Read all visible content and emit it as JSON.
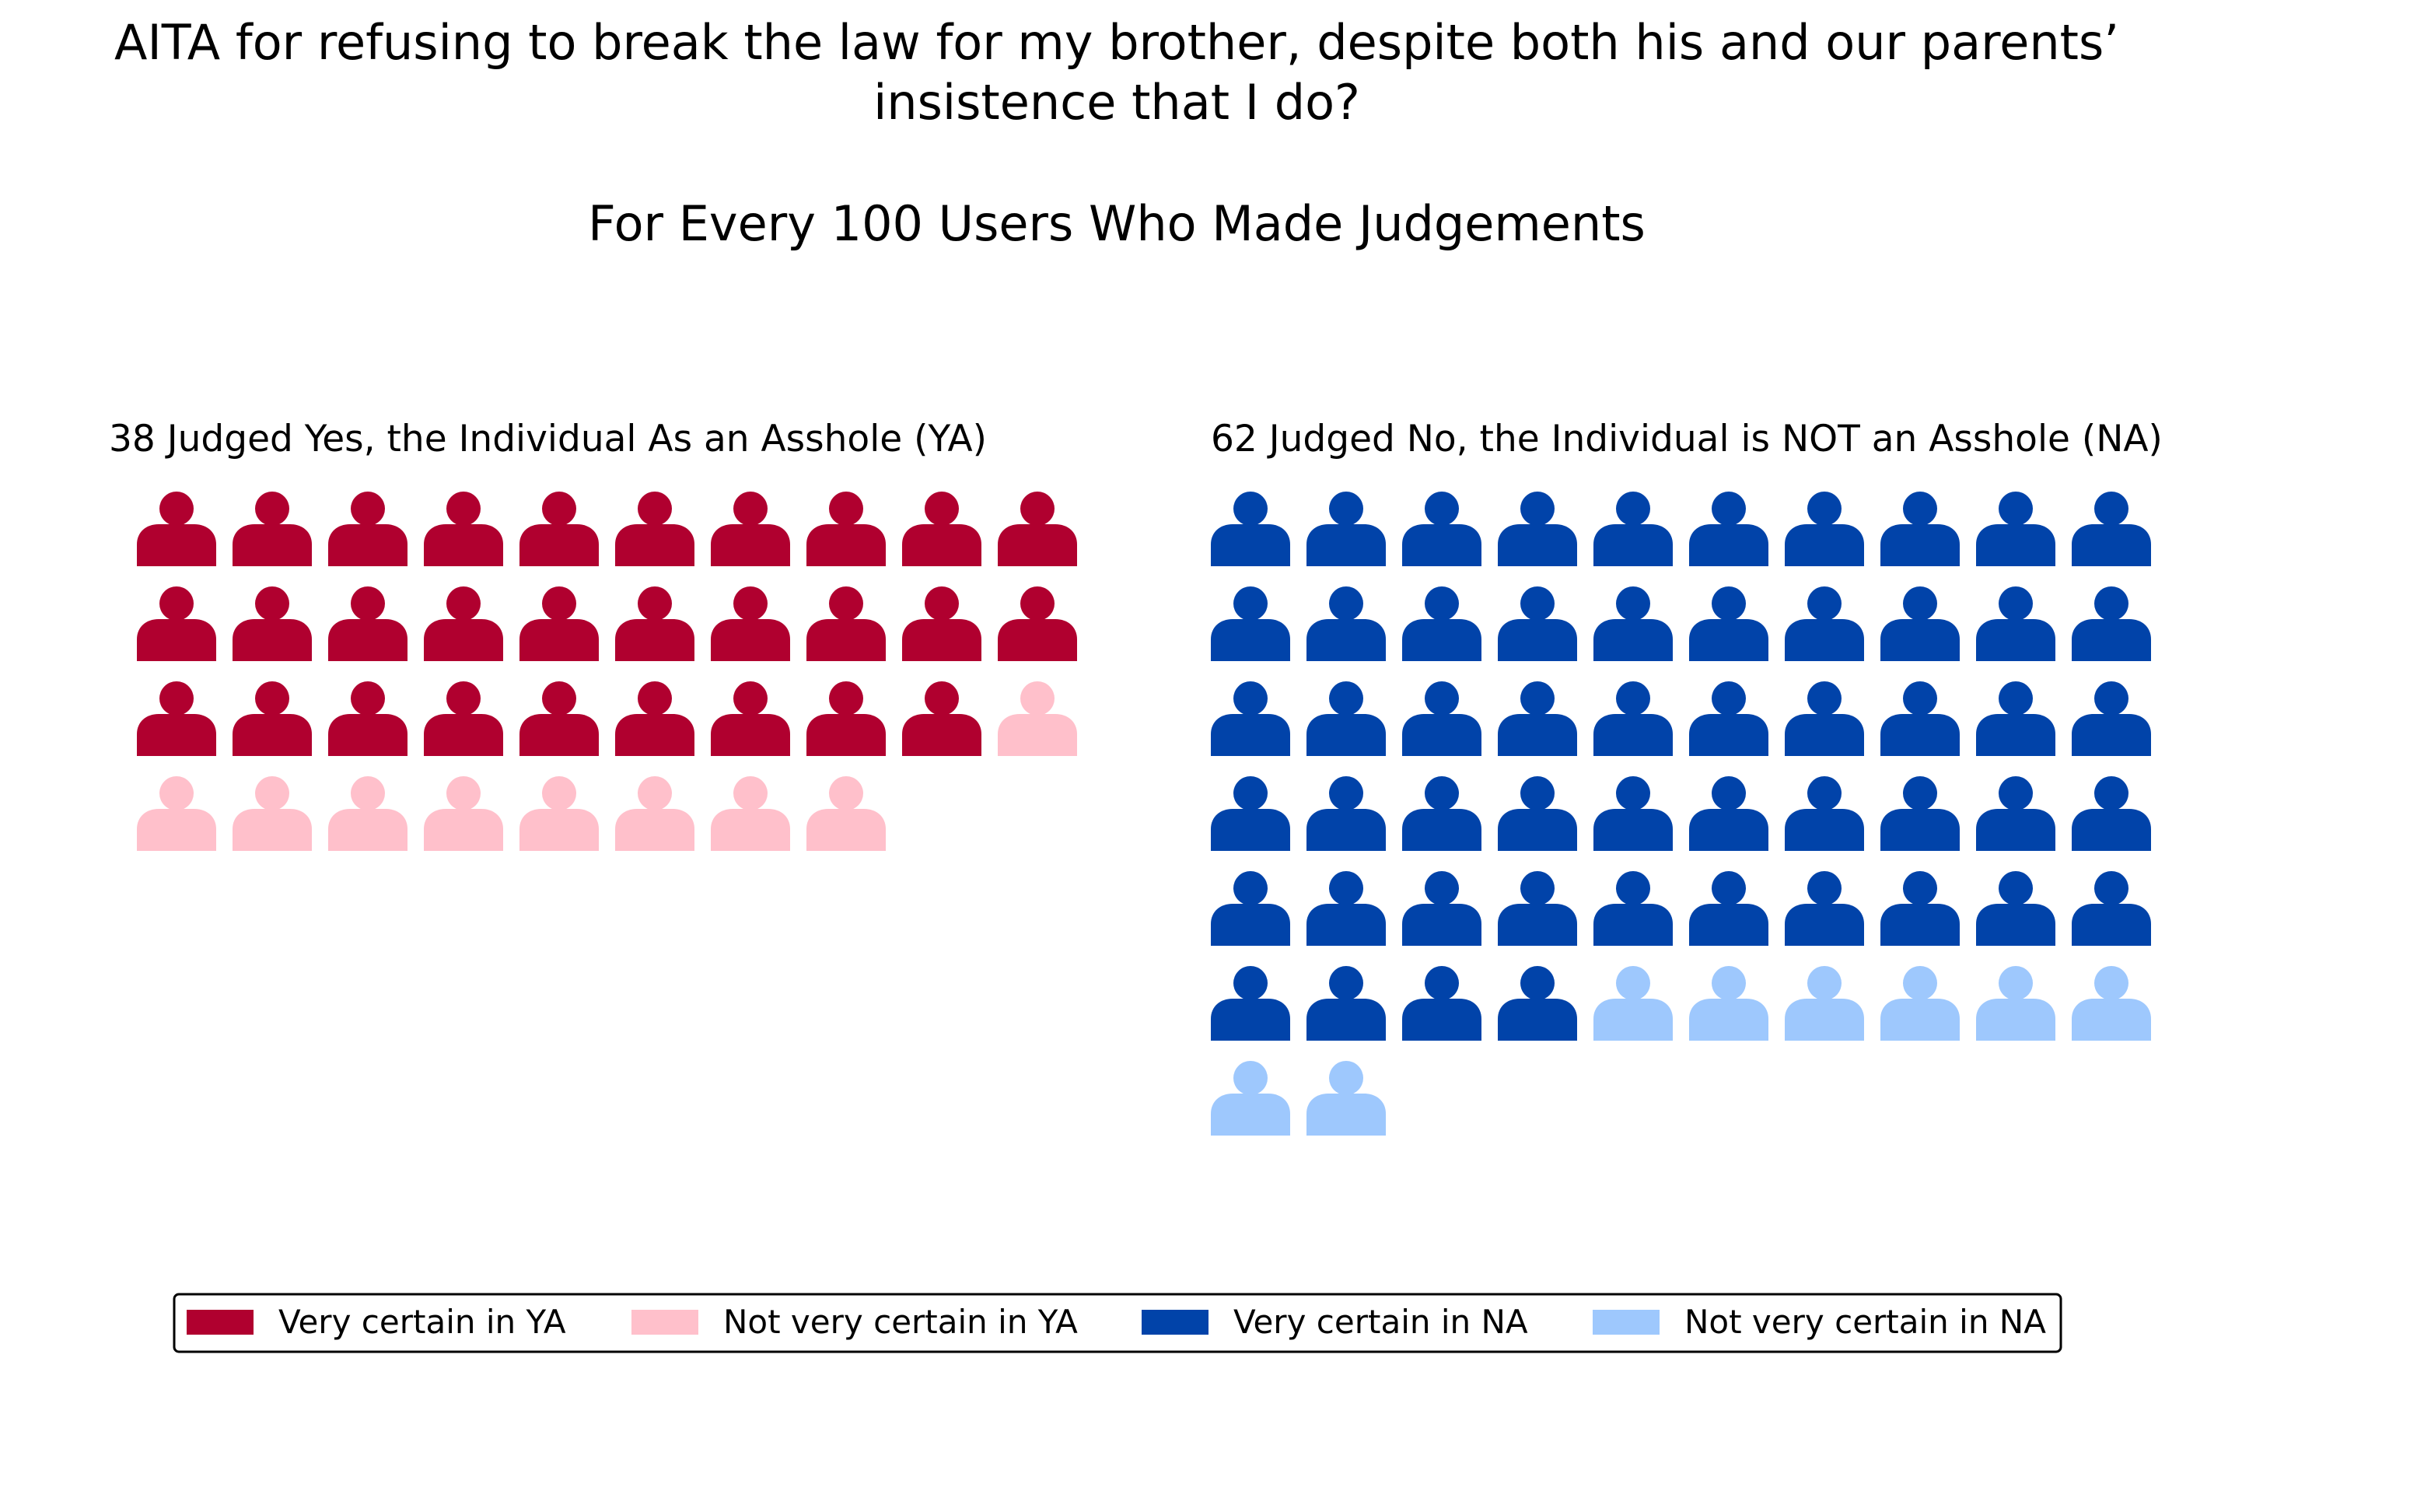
{
  "chart_data": {
    "type": "waffle",
    "title": "AITA for refusing to break the law for my brother, despite both his and our parents’ insistence that I do?",
    "subtitle": "For Every 100 Users Who Made Judgements",
    "total": 100,
    "icon": "person-icon",
    "columns_per_row": 10,
    "panels": [
      {
        "title": "38 Judged Yes, the Individual As an Asshole (YA)",
        "total": 38,
        "series": [
          {
            "name": "Very certain in YA",
            "count": 29,
            "color": "#b0002f"
          },
          {
            "name": "Not very certain in YA",
            "count": 9,
            "color": "#ffc0cb"
          }
        ]
      },
      {
        "title": "62 Judged No, the Individual is NOT an Asshole (NA)",
        "total": 62,
        "series": [
          {
            "name": "Very certain in NA",
            "count": 54,
            "color": "#0143a9"
          },
          {
            "name": "Not very certain in NA",
            "count": 8,
            "color": "#9ec8fd"
          }
        ]
      }
    ],
    "legend": {
      "placement": "bottom",
      "entries": [
        {
          "label": "Very certain in YA",
          "color": "#b0002f"
        },
        {
          "label": "Not very certain in YA",
          "color": "#ffc0cb"
        },
        {
          "label": "Very certain in NA",
          "color": "#0143a9"
        },
        {
          "label": "Not very certain in NA",
          "color": "#9ec8fd"
        }
      ]
    }
  }
}
